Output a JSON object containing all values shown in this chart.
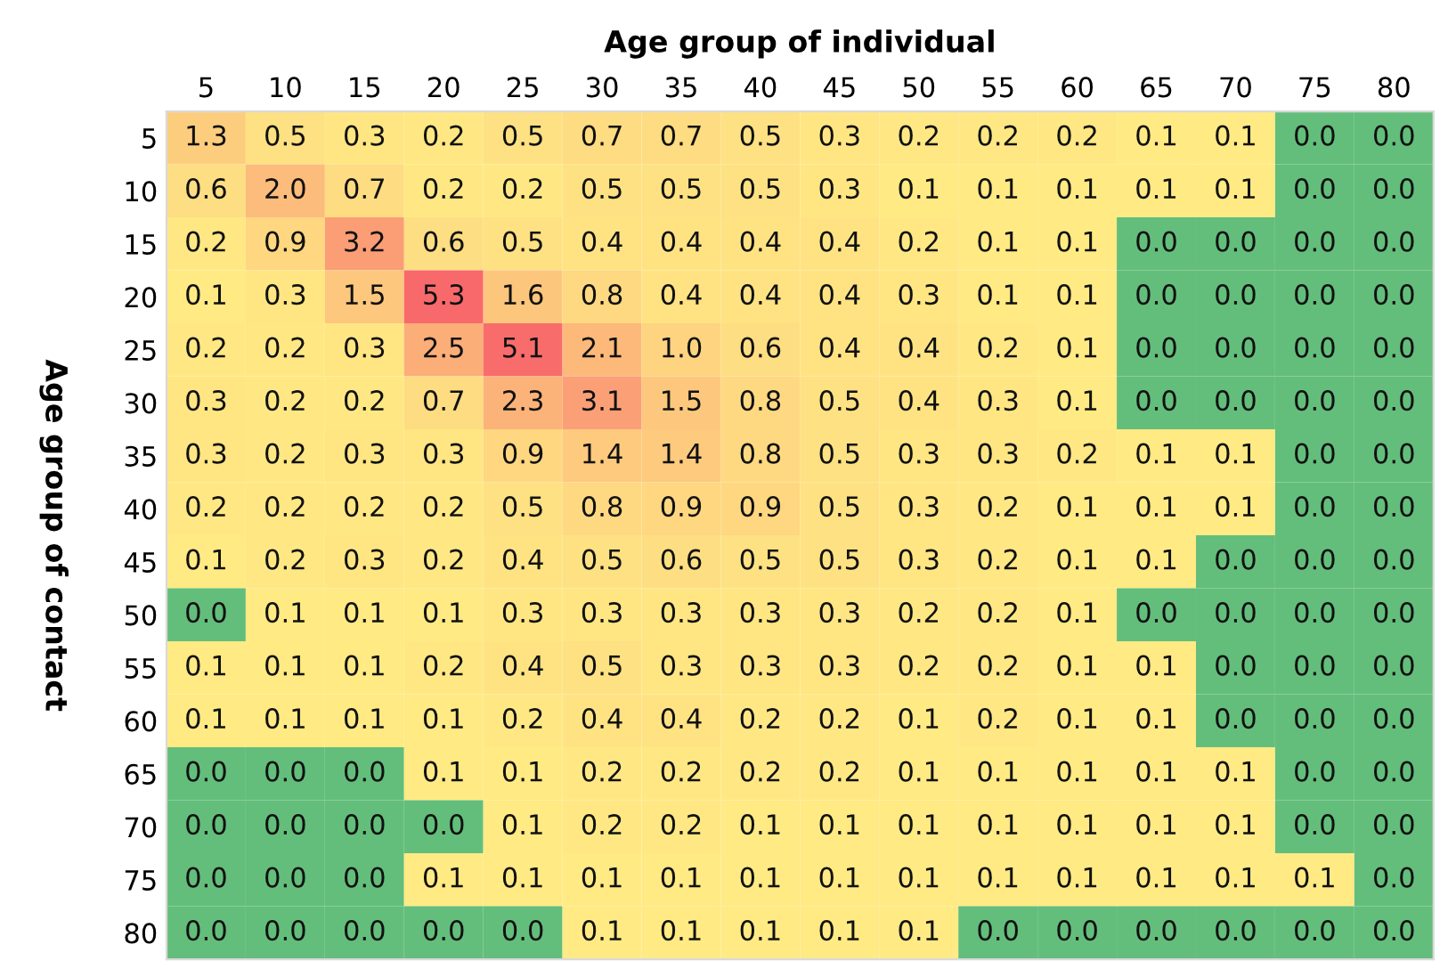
{
  "chart_data": {
    "type": "heatmap",
    "title": "Age group of individual",
    "ylabel": "Age group of contact",
    "categories": [
      "5",
      "10",
      "15",
      "20",
      "25",
      "30",
      "35",
      "40",
      "45",
      "50",
      "55",
      "60",
      "65",
      "70",
      "75",
      "80"
    ],
    "y_categories": [
      "5",
      "10",
      "15",
      "20",
      "25",
      "30",
      "35",
      "40",
      "45",
      "50",
      "55",
      "60",
      "65",
      "70",
      "75",
      "80"
    ],
    "colors": [
      "#63be7b",
      "#ffeb84",
      "#f8696b"
    ],
    "cell_labels": [
      [
        "1.3",
        "0.5",
        "0.3",
        "0.2",
        "0.5",
        "0.7",
        "0.7",
        "0.5",
        "0.3",
        "0.2",
        "0.2",
        "0.2",
        "0.1",
        "0.1",
        "0.0",
        "0.0"
      ],
      [
        "0.6",
        "2.0",
        "0.7",
        "0.2",
        "0.2",
        "0.5",
        "0.5",
        "0.5",
        "0.3",
        "0.1",
        "0.1",
        "0.1",
        "0.1",
        "0.1",
        "0.0",
        "0.0"
      ],
      [
        "0.2",
        "0.9",
        "3.2",
        "0.6",
        "0.5",
        "0.4",
        "0.4",
        "0.4",
        "0.4",
        "0.2",
        "0.1",
        "0.1",
        "0.0",
        "0.0",
        "0.0",
        "0.0"
      ],
      [
        "0.1",
        "0.3",
        "1.5",
        "5.3",
        "1.6",
        "0.8",
        "0.4",
        "0.4",
        "0.4",
        "0.3",
        "0.1",
        "0.1",
        "0.0",
        "0.0",
        "0.0",
        "0.0"
      ],
      [
        "0.2",
        "0.2",
        "0.3",
        "2.5",
        "5.1",
        "2.1",
        "1.0",
        "0.6",
        "0.4",
        "0.4",
        "0.2",
        "0.1",
        "0.0",
        "0.0",
        "0.0",
        "0.0"
      ],
      [
        "0.3",
        "0.2",
        "0.2",
        "0.7",
        "2.3",
        "3.1",
        "1.5",
        "0.8",
        "0.5",
        "0.4",
        "0.3",
        "0.1",
        "0.0",
        "0.0",
        "0.0",
        "0.0"
      ],
      [
        "0.3",
        "0.2",
        "0.3",
        "0.3",
        "0.9",
        "1.4",
        "1.4",
        "0.8",
        "0.5",
        "0.3",
        "0.3",
        "0.2",
        "0.1",
        "0.1",
        "0.0",
        "0.0"
      ],
      [
        "0.2",
        "0.2",
        "0.2",
        "0.2",
        "0.5",
        "0.8",
        "0.9",
        "0.9",
        "0.5",
        "0.3",
        "0.2",
        "0.1",
        "0.1",
        "0.1",
        "0.0",
        "0.0"
      ],
      [
        "0.1",
        "0.2",
        "0.3",
        "0.2",
        "0.4",
        "0.5",
        "0.6",
        "0.5",
        "0.5",
        "0.3",
        "0.2",
        "0.1",
        "0.1",
        "0.0",
        "0.0",
        "0.0"
      ],
      [
        "0.0",
        "0.1",
        "0.1",
        "0.1",
        "0.3",
        "0.3",
        "0.3",
        "0.3",
        "0.3",
        "0.2",
        "0.2",
        "0.1",
        "0.0",
        "0.0",
        "0.0",
        "0.0"
      ],
      [
        "0.1",
        "0.1",
        "0.1",
        "0.2",
        "0.4",
        "0.5",
        "0.3",
        "0.3",
        "0.3",
        "0.2",
        "0.2",
        "0.1",
        "0.1",
        "0.0",
        "0.0",
        "0.0"
      ],
      [
        "0.1",
        "0.1",
        "0.1",
        "0.1",
        "0.2",
        "0.4",
        "0.4",
        "0.2",
        "0.2",
        "0.1",
        "0.2",
        "0.1",
        "0.1",
        "0.0",
        "0.0",
        "0.0"
      ],
      [
        "0.0",
        "0.0",
        "0.0",
        "0.1",
        "0.1",
        "0.2",
        "0.2",
        "0.2",
        "0.2",
        "0.1",
        "0.1",
        "0.1",
        "0.1",
        "0.1",
        "0.0",
        "0.0"
      ],
      [
        "0.0",
        "0.0",
        "0.0",
        "0.0",
        "0.1",
        "0.2",
        "0.2",
        "0.1",
        "0.1",
        "0.1",
        "0.1",
        "0.1",
        "0.1",
        "0.1",
        "0.0",
        "0.0"
      ],
      [
        "0.0",
        "0.0",
        "0.0",
        "0.1",
        "0.1",
        "0.1",
        "0.1",
        "0.1",
        "0.1",
        "0.1",
        "0.1",
        "0.1",
        "0.1",
        "0.1",
        "0.1",
        "0.0"
      ],
      [
        "0.0",
        "0.0",
        "0.0",
        "0.0",
        "0.0",
        "0.1",
        "0.1",
        "0.1",
        "0.1",
        "0.1",
        "0.0",
        "0.0",
        "0.0",
        "0.0",
        "0.0",
        "0.0"
      ]
    ],
    "cells": [
      [
        1.3,
        0.5,
        0.3,
        0.2,
        0.5,
        0.7,
        0.7,
        0.5,
        0.3,
        0.2,
        0.2,
        0.2,
        0.1,
        0.1,
        0.0,
        0.0
      ],
      [
        0.6,
        2.0,
        0.7,
        0.2,
        0.2,
        0.5,
        0.5,
        0.5,
        0.3,
        0.1,
        0.1,
        0.1,
        0.1,
        0.1,
        0.0,
        0.0
      ],
      [
        0.2,
        0.9,
        3.2,
        0.6,
        0.5,
        0.4,
        0.4,
        0.4,
        0.4,
        0.2,
        0.1,
        0.1,
        0.0,
        0.0,
        0.0,
        0.0
      ],
      [
        0.1,
        0.3,
        1.5,
        5.3,
        1.6,
        0.8,
        0.4,
        0.4,
        0.4,
        0.3,
        0.1,
        0.1,
        0.0,
        0.0,
        0.0,
        0.0
      ],
      [
        0.2,
        0.2,
        0.3,
        2.5,
        5.1,
        2.1,
        1.0,
        0.6,
        0.4,
        0.4,
        0.2,
        0.1,
        0.0,
        0.0,
        0.0,
        0.0
      ],
      [
        0.3,
        0.2,
        0.2,
        0.7,
        2.3,
        3.1,
        1.5,
        0.8,
        0.5,
        0.4,
        0.3,
        0.1,
        0.0,
        0.0,
        0.0,
        0.0
      ],
      [
        0.3,
        0.2,
        0.3,
        0.3,
        0.9,
        1.4,
        1.4,
        0.8,
        0.5,
        0.3,
        0.3,
        0.2,
        0.1,
        0.1,
        0.0,
        0.0
      ],
      [
        0.2,
        0.2,
        0.2,
        0.2,
        0.5,
        0.8,
        0.9,
        0.9,
        0.5,
        0.3,
        0.2,
        0.1,
        0.1,
        0.1,
        0.0,
        0.0
      ],
      [
        0.1,
        0.2,
        0.3,
        0.2,
        0.4,
        0.5,
        0.6,
        0.5,
        0.5,
        0.3,
        0.2,
        0.1,
        0.1,
        0.0,
        0.0,
        0.0
      ],
      [
        0.0,
        0.1,
        0.1,
        0.1,
        0.3,
        0.3,
        0.3,
        0.3,
        0.3,
        0.2,
        0.2,
        0.1,
        0.0,
        0.0,
        0.0,
        0.0
      ],
      [
        0.1,
        0.1,
        0.1,
        0.2,
        0.4,
        0.5,
        0.3,
        0.3,
        0.3,
        0.2,
        0.2,
        0.1,
        0.1,
        0.0,
        0.0,
        0.0
      ],
      [
        0.1,
        0.1,
        0.1,
        0.1,
        0.2,
        0.4,
        0.4,
        0.2,
        0.2,
        0.1,
        0.2,
        0.1,
        0.1,
        0.0,
        0.0,
        0.0
      ],
      [
        0.0,
        0.0,
        0.0,
        0.1,
        0.1,
        0.2,
        0.2,
        0.2,
        0.2,
        0.1,
        0.1,
        0.1,
        0.1,
        0.1,
        0.0,
        0.0
      ],
      [
        0.0,
        0.0,
        0.0,
        0.0,
        0.1,
        0.2,
        0.2,
        0.1,
        0.1,
        0.1,
        0.1,
        0.1,
        0.1,
        0.1,
        0.0,
        0.0
      ],
      [
        0.0,
        0.0,
        0.0,
        0.1,
        0.1,
        0.1,
        0.1,
        0.1,
        0.1,
        0.1,
        0.1,
        0.1,
        0.1,
        0.1,
        0.1,
        0.0
      ],
      [
        0.0,
        0.0,
        0.0,
        0.0,
        0.0,
        0.1,
        0.1,
        0.1,
        0.1,
        0.1,
        0.0,
        0.0,
        0.0,
        0.0,
        0.0,
        0.0
      ]
    ]
  }
}
